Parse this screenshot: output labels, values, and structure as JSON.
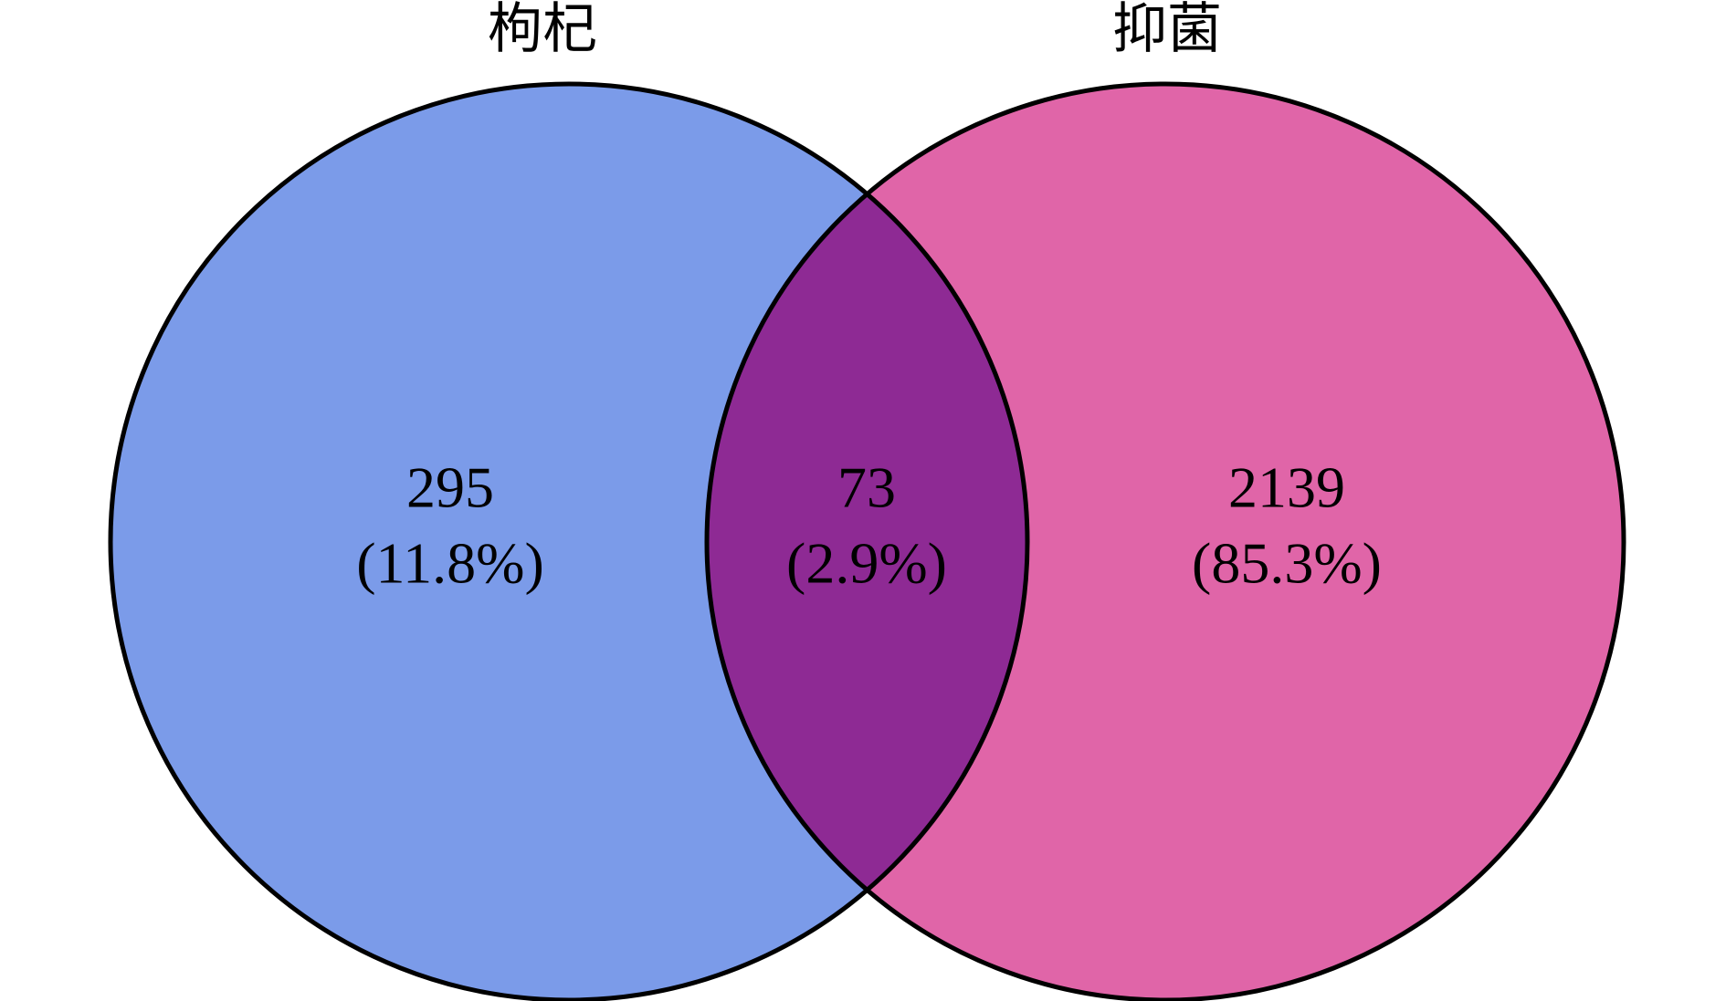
{
  "chart_data": {
    "type": "venn",
    "sets": [
      {
        "name": "枸杞",
        "color": "#7b9be9"
      },
      {
        "name": "抑菌",
        "color": "#e065a8"
      }
    ],
    "overlap_color": "#8e2a94",
    "regions": [
      "left",
      "both",
      "right"
    ],
    "values": [
      295,
      73,
      2139
    ],
    "shares": [
      11.8,
      2.9,
      85.3
    ],
    "share_labels": [
      "(11.8%)",
      "(2.9%)",
      "(85.3%)"
    ]
  }
}
